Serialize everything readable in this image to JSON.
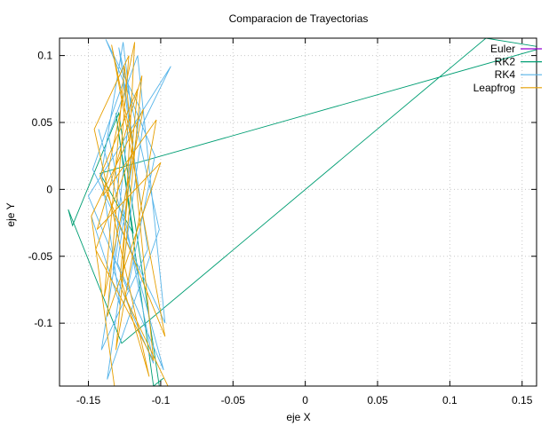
{
  "chart_data": {
    "type": "line",
    "title": "Comparacion de Trayectorias",
    "xlabel": "eje X",
    "ylabel": "eje Y",
    "xlim": [
      -0.17,
      0.16
    ],
    "ylim": [
      -0.147,
      0.113
    ],
    "grid": true,
    "legend_position": "top-right",
    "x_ticks": [
      -0.15,
      -0.1,
      -0.05,
      0,
      0.05,
      0.1,
      0.15
    ],
    "x_tick_labels": [
      "-0.15",
      "-0.1",
      "-0.05",
      "0",
      "0.05",
      "0.1",
      "0.15"
    ],
    "y_ticks": [
      -0.1,
      -0.05,
      0,
      0.05,
      0.1
    ],
    "y_tick_labels": [
      "-0.1",
      "-0.05",
      "0",
      "0.05",
      "0.1"
    ],
    "series": [
      {
        "name": "Euler",
        "color": "#9400d3",
        "x": [],
        "y": []
      },
      {
        "name": "RK2",
        "color": "#009e73",
        "x": [
          -0.101,
          -0.129,
          -0.161,
          -0.164,
          -0.127,
          0.125,
          0.165,
          -0.142,
          -0.119,
          -0.131,
          -0.105,
          -0.098
        ],
        "y": [
          -0.147,
          0.057,
          -0.027,
          -0.015,
          -0.115,
          0.113,
          0.106,
          0.012,
          -0.033,
          0.057,
          -0.147,
          -0.141
        ]
      },
      {
        "name": "RK4",
        "color": "#56b4e9",
        "x": [
          -0.148,
          -0.128,
          -0.141,
          -0.126,
          -0.121,
          -0.133,
          -0.105,
          -0.136,
          -0.116,
          -0.097,
          -0.147,
          -0.126,
          -0.109,
          -0.141,
          -0.119,
          -0.129,
          -0.101,
          -0.137,
          -0.112,
          -0.093,
          -0.15,
          -0.123,
          -0.104,
          -0.138,
          -0.114,
          -0.13,
          -0.098,
          -0.143
        ],
        "y": [
          -0.02,
          -0.087,
          0.012,
          0.11,
          0.065,
          -0.06,
          -0.13,
          0.04,
          0.1,
          -0.1,
          0.015,
          0.08,
          -0.045,
          -0.12,
          0.035,
          0.106,
          -0.03,
          -0.142,
          0.05,
          0.092,
          -0.005,
          -0.075,
          0.025,
          0.112,
          0.06,
          -0.055,
          -0.135,
          0.045
        ]
      },
      {
        "name": "Leapfrog",
        "color": "#e69f00",
        "x": [
          -0.132,
          -0.148,
          -0.112,
          -0.139,
          -0.125,
          -0.105,
          -0.145,
          -0.119,
          -0.134,
          -0.097,
          -0.142,
          -0.116,
          -0.128,
          -0.108,
          -0.146,
          -0.122,
          -0.137,
          -0.1,
          -0.144,
          -0.113,
          -0.131,
          -0.103,
          -0.14,
          -0.118,
          -0.127,
          -0.095
        ],
        "y": [
          -0.147,
          -0.02,
          0.06,
          -0.08,
          0.092,
          -0.128,
          -0.045,
          0.03,
          0.108,
          -0.11,
          0.01,
          0.075,
          -0.065,
          -0.14,
          0.045,
          0.1,
          -0.095,
          0.02,
          -0.03,
          0.085,
          -0.12,
          0.052,
          -0.005,
          0.11,
          -0.075,
          -0.147
        ]
      }
    ]
  }
}
